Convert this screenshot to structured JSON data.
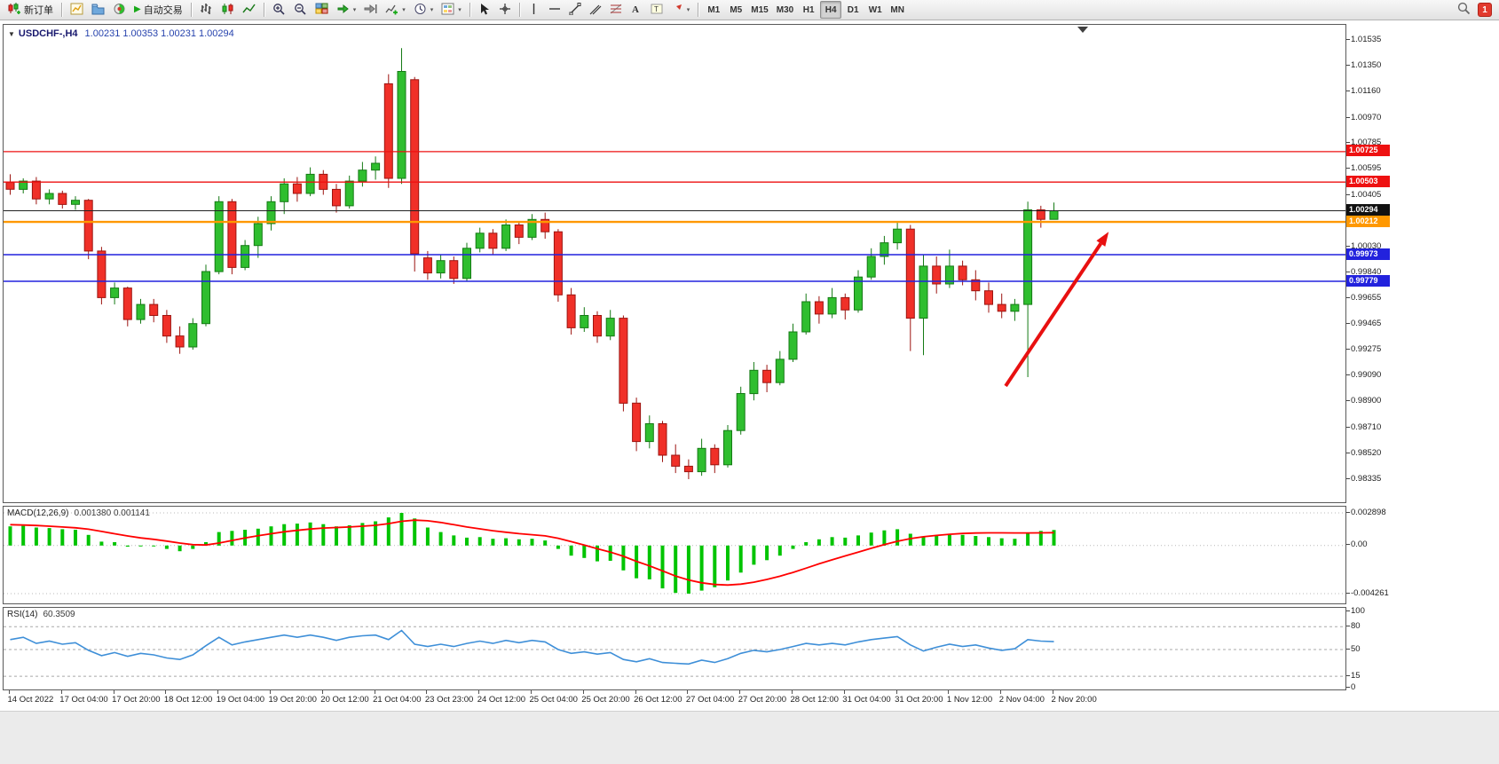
{
  "toolbar": {
    "new_order": "新订单",
    "auto_trading": "自动交易",
    "timeframes": [
      "M1",
      "M5",
      "M15",
      "M30",
      "H1",
      "H4",
      "D1",
      "W1",
      "MN"
    ],
    "active_timeframe": "H4",
    "notification_badge": "1"
  },
  "chart": {
    "title": "USDCHF-,H4",
    "ohlc": "1.00231 1.00353 1.00231 1.00294"
  },
  "indicators": {
    "macd_label": "MACD(12,26,9)",
    "macd_values": "0.001380 0.001141",
    "rsi_label": "RSI(14)",
    "rsi_value": "60.3509"
  },
  "chart_data": {
    "type": "candlestick",
    "symbol": "USDCHF",
    "timeframe": "H4",
    "ohlc_display": {
      "open": "1.00231",
      "high": "1.00353",
      "low": "1.00231",
      "close": "1.00294"
    },
    "price_max": 1.0165,
    "price_min": 0.98167,
    "price_axis_ticks": [
      "1.01535",
      "1.01350",
      "1.01160",
      "1.00970",
      "1.00785",
      "1.00595",
      "1.00405",
      "1.00220",
      "1.00030",
      "0.99840",
      "0.99655",
      "0.99465",
      "0.99275",
      "0.99090",
      "0.98900",
      "0.98710",
      "0.98520",
      "0.98335"
    ],
    "x_labels": [
      "14 Oct 2022",
      "17 Oct 04:00",
      "17 Oct 20:00",
      "18 Oct 12:00",
      "19 Oct 04:00",
      "19 Oct 20:00",
      "20 Oct 12:00",
      "21 Oct 04:00",
      "23 Oct 23:00",
      "24 Oct 12:00",
      "25 Oct 04:00",
      "25 Oct 20:00",
      "26 Oct 12:00",
      "27 Oct 04:00",
      "27 Oct 20:00",
      "28 Oct 12:00",
      "31 Oct 04:00",
      "31 Oct 20:00",
      "1 Nov 12:00",
      "2 Nov 04:00",
      "2 Nov 20:00"
    ],
    "x_label_every": 4,
    "colors": {
      "up": "#2fbe2f",
      "up_border": "#157a15",
      "down": "#f03028",
      "down_border": "#9c1410",
      "macd_hist": "#00c400",
      "macd_signal": "#ff0000",
      "rsi_line": "#3e8fd8",
      "arrow": "#e81010"
    },
    "candles": [
      [
        1.005,
        1.0056,
        1.0041,
        1.0045
      ],
      [
        1.0045,
        1.0053,
        1.0042,
        1.0051
      ],
      [
        1.0051,
        1.0054,
        1.0034,
        1.0038
      ],
      [
        1.0038,
        1.0045,
        1.0034,
        1.0042
      ],
      [
        1.0042,
        1.0044,
        1.0031,
        1.0034
      ],
      [
        1.0034,
        1.004,
        1.003,
        1.0037
      ],
      [
        1.0037,
        1.0038,
        0.9994,
        1.0
      ],
      [
        1.0,
        1.0003,
        0.9961,
        0.9966
      ],
      [
        0.9966,
        0.9977,
        0.9961,
        0.9973
      ],
      [
        0.9973,
        0.9974,
        0.9945,
        0.995
      ],
      [
        0.995,
        0.9965,
        0.9947,
        0.9961
      ],
      [
        0.9961,
        0.9965,
        0.9948,
        0.9953
      ],
      [
        0.9953,
        0.9957,
        0.9933,
        0.9938
      ],
      [
        0.9938,
        0.9945,
        0.9925,
        0.993
      ],
      [
        0.993,
        0.9951,
        0.9928,
        0.9947
      ],
      [
        0.9947,
        0.999,
        0.9945,
        0.9985
      ],
      [
        0.9985,
        1.004,
        0.9983,
        1.0036
      ],
      [
        1.0036,
        1.0038,
        0.9983,
        0.9988
      ],
      [
        0.9988,
        1.0008,
        0.9986,
        1.0004
      ],
      [
        1.0004,
        1.0025,
        0.9995,
        1.002
      ],
      [
        1.002,
        1.004,
        1.0015,
        1.0036
      ],
      [
        1.0036,
        1.0053,
        1.0027,
        1.0049
      ],
      [
        1.0049,
        1.0054,
        1.0036,
        1.0042
      ],
      [
        1.0042,
        1.0061,
        1.004,
        1.0056
      ],
      [
        1.0056,
        1.0059,
        1.0041,
        1.0045
      ],
      [
        1.0045,
        1.0049,
        1.0028,
        1.0033
      ],
      [
        1.0033,
        1.0055,
        1.0031,
        1.0051
      ],
      [
        1.0051,
        1.0065,
        1.0047,
        1.0059
      ],
      [
        1.0059,
        1.0069,
        1.0052,
        1.0064
      ],
      [
        1.0122,
        1.0129,
        1.0046,
        1.0053
      ],
      [
        1.0053,
        1.0148,
        1.0049,
        1.0131
      ],
      [
        1.0125,
        1.0127,
        0.9985,
        0.9998
      ],
      [
        0.9995,
        1.0,
        0.9979,
        0.9984
      ],
      [
        0.9984,
        0.9997,
        0.998,
        0.9993
      ],
      [
        0.9993,
        0.9996,
        0.9976,
        0.998
      ],
      [
        0.998,
        1.0006,
        0.9978,
        1.0002
      ],
      [
        1.0002,
        1.0017,
        0.9999,
        1.0013
      ],
      [
        1.0013,
        1.0016,
        0.9997,
        1.0002
      ],
      [
        1.0002,
        1.0023,
        1.0,
        1.0019
      ],
      [
        1.0019,
        1.0021,
        1.0005,
        1.001
      ],
      [
        1.001,
        1.0027,
        1.0008,
        1.0023
      ],
      [
        1.0023,
        1.0028,
        1.0009,
        1.0014
      ],
      [
        1.0014,
        1.0016,
        0.9963,
        0.9968
      ],
      [
        0.9968,
        0.9973,
        0.9939,
        0.9944
      ],
      [
        0.9944,
        0.9959,
        0.9941,
        0.9953
      ],
      [
        0.9953,
        0.9956,
        0.9933,
        0.9938
      ],
      [
        0.9938,
        0.9957,
        0.9935,
        0.9951
      ],
      [
        0.9951,
        0.9953,
        0.9883,
        0.9889
      ],
      [
        0.9889,
        0.9893,
        0.9854,
        0.9861
      ],
      [
        0.9861,
        0.988,
        0.9856,
        0.9874
      ],
      [
        0.9874,
        0.9876,
        0.9846,
        0.9851
      ],
      [
        0.9851,
        0.9859,
        0.9838,
        0.9843
      ],
      [
        0.9843,
        0.9848,
        0.98335,
        0.9839
      ],
      [
        0.9839,
        0.9863,
        0.9836,
        0.9856
      ],
      [
        0.9856,
        0.9859,
        0.9838,
        0.9844
      ],
      [
        0.9844,
        0.9873,
        0.9842,
        0.9869
      ],
      [
        0.9869,
        0.9901,
        0.9866,
        0.9896
      ],
      [
        0.9896,
        0.9919,
        0.9891,
        0.9913
      ],
      [
        0.9913,
        0.9917,
        0.9897,
        0.9904
      ],
      [
        0.9904,
        0.9927,
        0.9902,
        0.9921
      ],
      [
        0.9921,
        0.9947,
        0.9919,
        0.9941
      ],
      [
        0.9941,
        0.9969,
        0.9939,
        0.9963
      ],
      [
        0.9963,
        0.9967,
        0.9947,
        0.9954
      ],
      [
        0.9954,
        0.9973,
        0.9951,
        0.9966
      ],
      [
        0.9966,
        0.9969,
        0.995,
        0.9957
      ],
      [
        0.9957,
        0.9986,
        0.9955,
        0.9981
      ],
      [
        0.9981,
        1.0002,
        0.9979,
        0.9996
      ],
      [
        0.9996,
        1.0011,
        0.999,
        1.0006
      ],
      [
        1.0006,
        1.0021,
        1.0001,
        1.0016
      ],
      [
        1.0016,
        1.0019,
        0.9927,
        0.9951
      ],
      [
        0.9951,
        0.9997,
        0.9924,
        0.9989
      ],
      [
        0.9989,
        0.9996,
        0.9969,
        0.9976
      ],
      [
        0.9976,
        1.0001,
        0.9973,
        0.9989
      ],
      [
        0.9989,
        0.9993,
        0.9975,
        0.9979
      ],
      [
        0.9979,
        0.9986,
        0.9964,
        0.9971
      ],
      [
        0.9971,
        0.9977,
        0.9955,
        0.9961
      ],
      [
        0.9961,
        0.9969,
        0.9951,
        0.9956
      ],
      [
        0.9956,
        0.9965,
        0.9949,
        0.9961
      ],
      [
        0.9961,
        1.0036,
        0.9908,
        1.003
      ],
      [
        1.003,
        1.0033,
        1.0017,
        1.00231
      ],
      [
        1.00231,
        1.00353,
        1.00231,
        1.00294
      ]
    ],
    "hlines": [
      {
        "price": 1.00725,
        "color": "#ee1111",
        "width": 1.3,
        "tag": "1.00725",
        "tag_color": "#ee1111"
      },
      {
        "price": 1.00503,
        "color": "#ee1111",
        "width": 1.3,
        "tag": "1.00503",
        "tag_color": "#ee1111"
      },
      {
        "price": 1.00294,
        "color": "#222222",
        "width": 1.1,
        "tag": "1.00294",
        "tag_color": "#111111"
      },
      {
        "price": 1.00212,
        "color": "#ff9800",
        "width": 2.4,
        "tag": "1.00212",
        "tag_color": "#ff9800"
      },
      {
        "price": 0.99973,
        "color": "#2222dd",
        "width": 1.4,
        "tag": "0.99973",
        "tag_color": "#2222dd"
      },
      {
        "price": 0.99779,
        "color": "#2222dd",
        "width": 1.4,
        "tag": "0.99779",
        "tag_color": "#2222dd"
      }
    ],
    "arrow": {
      "x_index_from": 76.3,
      "price_from": 0.99015,
      "x_index_to": 84.2,
      "price_to": 1.0014
    },
    "macd": {
      "name": "MACD(12,26,9)",
      "max": 0.002898,
      "min": -0.004261,
      "axis_labels": [
        "0.002898",
        "0.00",
        "-0.004261"
      ],
      "axis_values": [
        0.002898,
        0,
        -0.004261
      ],
      "hist": [
        0.0017,
        0.00175,
        0.0016,
        0.00155,
        0.00145,
        0.0014,
        0.00095,
        0.00035,
        0.0003,
        -0.0001,
        0.0,
        -5e-05,
        -0.0003,
        -0.0005,
        -0.0003,
        0.0003,
        0.0012,
        0.0013,
        0.0014,
        0.0015,
        0.0017,
        0.0019,
        0.00195,
        0.00205,
        0.0019,
        0.0017,
        0.0018,
        0.002,
        0.00215,
        0.0025,
        0.002898,
        0.0024,
        0.0016,
        0.0012,
        0.0009,
        0.0007,
        0.00075,
        0.0006,
        0.00065,
        0.00055,
        0.0006,
        0.00045,
        -0.0003,
        -0.0009,
        -0.0011,
        -0.0014,
        -0.00135,
        -0.0022,
        -0.0029,
        -0.003,
        -0.0038,
        -0.0042,
        -0.004261,
        -0.004,
        -0.0037,
        -0.0031,
        -0.0024,
        -0.0017,
        -0.0013,
        -0.0009,
        -0.0003,
        0.0003,
        0.00055,
        0.00075,
        0.0007,
        0.0009,
        0.00115,
        0.00135,
        0.00145,
        0.00105,
        0.0008,
        0.00085,
        0.00095,
        0.00095,
        0.00085,
        0.00075,
        0.00065,
        0.0006,
        0.0011,
        0.0013,
        0.00138
      ],
      "signal": [
        0.00185,
        0.00182,
        0.00178,
        0.00172,
        0.00165,
        0.00158,
        0.00145,
        0.00125,
        0.00105,
        0.00085,
        0.00068,
        0.00055,
        0.0004,
        0.00022,
        8e-05,
        5e-05,
        0.00022,
        0.00045,
        0.00068,
        0.00088,
        0.00105,
        0.00122,
        0.00135,
        0.00147,
        0.00155,
        0.0016,
        0.00165,
        0.00172,
        0.0018,
        0.00195,
        0.00215,
        0.00225,
        0.0022,
        0.00205,
        0.00185,
        0.00165,
        0.00148,
        0.00132,
        0.00118,
        0.00106,
        0.00096,
        0.00086,
        0.00065,
        0.00035,
        5e-05,
        -0.00028,
        -0.00058,
        -0.00095,
        -0.0014,
        -0.0018,
        -0.00225,
        -0.0027,
        -0.00305,
        -0.0033,
        -0.00345,
        -0.0035,
        -0.00342,
        -0.00325,
        -0.003,
        -0.00272,
        -0.00238,
        -0.002,
        -0.00162,
        -0.00126,
        -0.00092,
        -0.00058,
        -0.00024,
        8e-05,
        0.00038,
        0.00062,
        0.00078,
        0.0009,
        0.001,
        0.00107,
        0.00111,
        0.00113,
        0.00113,
        0.00112,
        0.00112,
        0.00113,
        0.001141
      ]
    },
    "rsi": {
      "name": "RSI(14)",
      "current": 60.3509,
      "axis_labels": [
        "100",
        "80",
        "50",
        "15",
        "0"
      ],
      "axis_values": [
        100,
        80,
        50,
        15,
        0
      ],
      "levels": [
        80,
        50,
        15
      ],
      "values": [
        63,
        66,
        58,
        61,
        57,
        59,
        49,
        42,
        46,
        41,
        45,
        43,
        39,
        37,
        43,
        55,
        66,
        56,
        60,
        63,
        66,
        69,
        66,
        69,
        66,
        62,
        66,
        68,
        69,
        63,
        75,
        57,
        54,
        57,
        54,
        58,
        61,
        58,
        62,
        59,
        62,
        60,
        50,
        45,
        47,
        44,
        46,
        37,
        34,
        38,
        33,
        32,
        31,
        36,
        33,
        38,
        45,
        49,
        47,
        50,
        54,
        58,
        56,
        58,
        56,
        60,
        63,
        65,
        67,
        56,
        48,
        53,
        57,
        54,
        56,
        52,
        49,
        51,
        63,
        61,
        60.3509
      ]
    }
  }
}
